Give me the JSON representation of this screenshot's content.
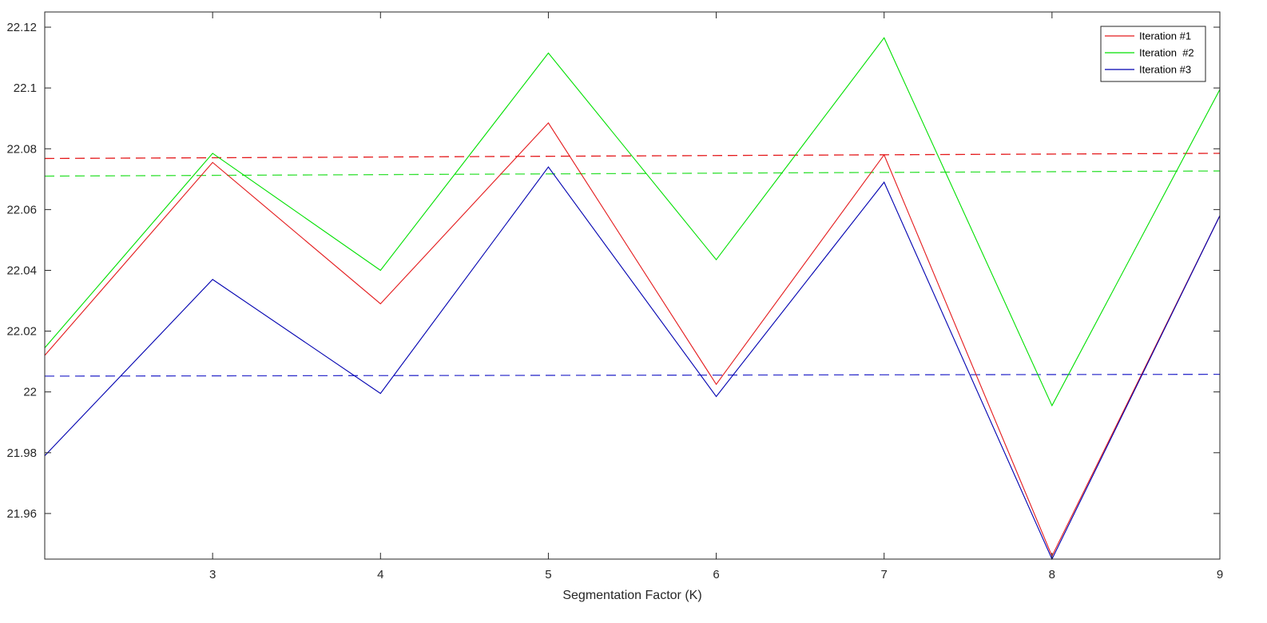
{
  "chart_data": {
    "type": "line",
    "title": "",
    "xlabel": "Segmentation Factor (K)",
    "ylabel": "",
    "xlim": [
      2,
      9
    ],
    "ylim": [
      21.945,
      22.125
    ],
    "x_ticks": [
      3,
      4,
      5,
      6,
      7,
      8,
      9
    ],
    "y_ticks": [
      21.96,
      21.98,
      22,
      22.02,
      22.04,
      22.06,
      22.08,
      22.1,
      22.12
    ],
    "y_tick_labels": [
      "21.96",
      "21.98",
      "22",
      "22.02",
      "22.04",
      "22.06",
      "22.08",
      "22.1",
      "22.12"
    ],
    "grid": false,
    "legend_position": "top-right",
    "x": [
      2,
      3,
      4,
      5,
      6,
      7,
      8,
      9
    ],
    "series": [
      {
        "name": "Iteration #1",
        "color": "#e41a1c",
        "style": "solid",
        "values": [
          22.012,
          22.0755,
          22.029,
          22.0885,
          22.0025,
          22.078,
          21.946,
          22.058
        ]
      },
      {
        "name": "Iteration  #2",
        "color": "#00e000",
        "style": "solid",
        "values": [
          22.0145,
          22.0785,
          22.04,
          22.1115,
          22.0435,
          22.1165,
          21.9955,
          22.0995
        ]
      },
      {
        "name": "Iteration #3",
        "color": "#0000b0",
        "style": "solid",
        "values": [
          21.979,
          22.037,
          21.9995,
          22.074,
          21.9985,
          22.069,
          21.945,
          22.058
        ]
      }
    ],
    "trend_lines": [
      {
        "color": "#e41a1c",
        "style": "dashed",
        "x": [
          2,
          9
        ],
        "values": [
          22.0768,
          22.0785
        ]
      },
      {
        "color": "#33e033",
        "style": "dashed",
        "x": [
          2,
          9
        ],
        "values": [
          22.071,
          22.0727
        ]
      },
      {
        "color": "#3333cc",
        "style": "dashed",
        "x": [
          2,
          9
        ],
        "values": [
          22.0052,
          22.0058
        ]
      }
    ]
  }
}
